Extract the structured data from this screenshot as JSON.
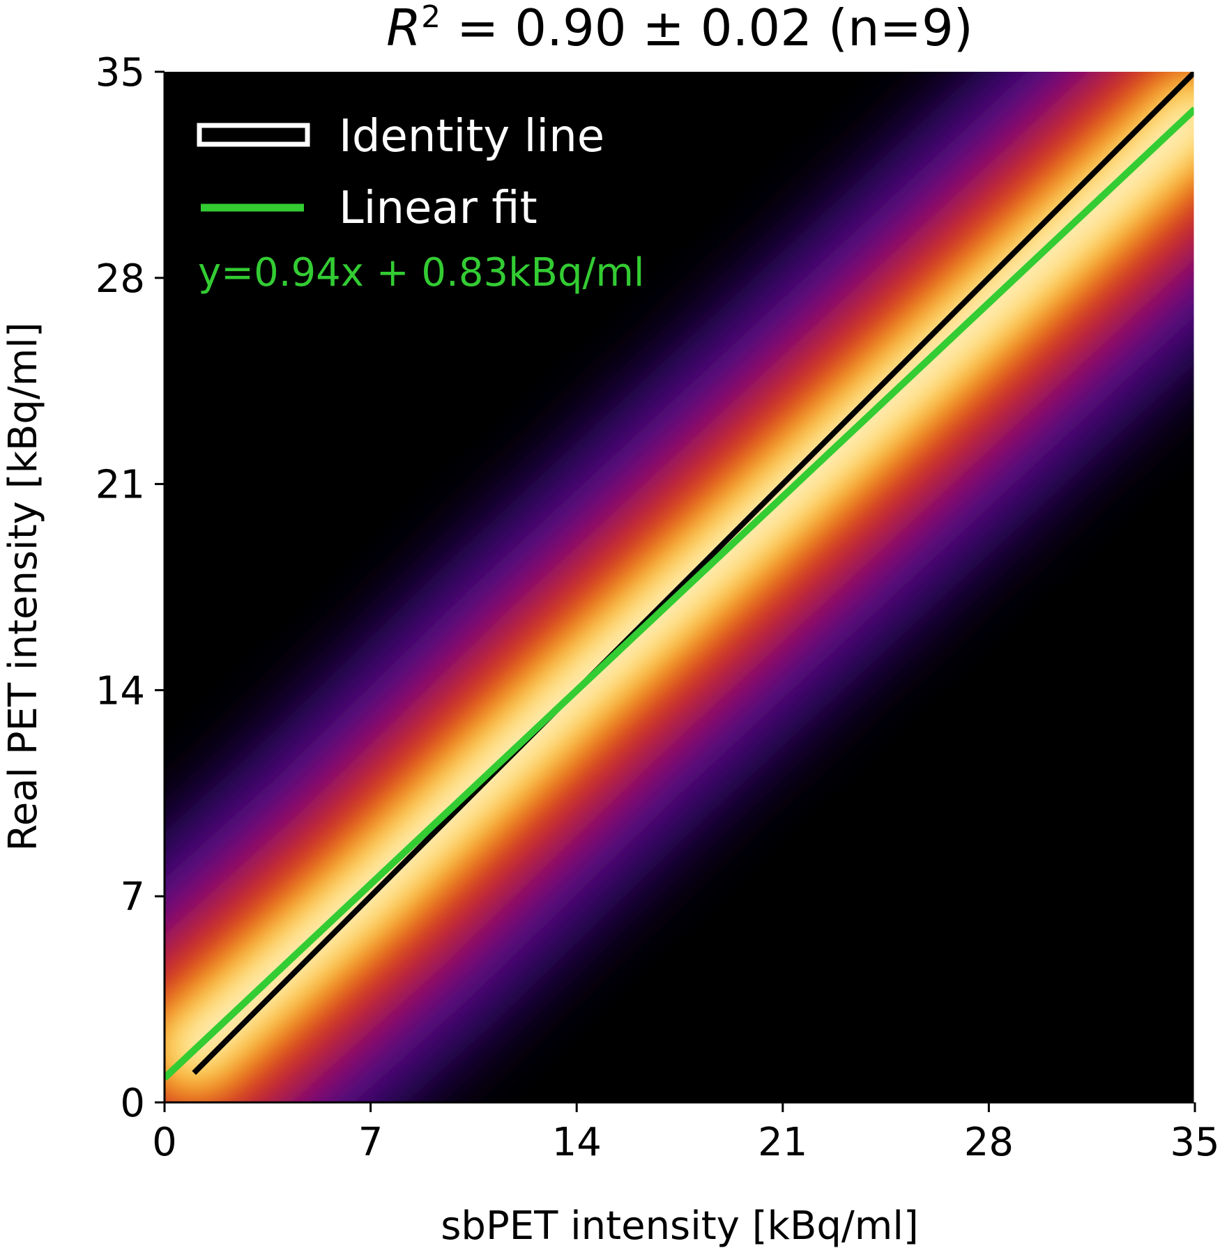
{
  "chart_data": {
    "type": "heatmap",
    "title": {
      "r_symbol": "R",
      "r_exponent": "2",
      "rest": " = 0.90 ± 0.02 (n=9)"
    },
    "xlabel": "sbPET intensity [kBq/ml]",
    "ylabel": "Real PET intensity [kBq/ml]",
    "xlim": [
      0,
      35
    ],
    "ylim": [
      0,
      35
    ],
    "xticks": [
      0,
      7,
      14,
      21,
      28,
      35
    ],
    "yticks": [
      0,
      7,
      14,
      21,
      28,
      35
    ],
    "colormap": "hot",
    "background_color": "#000000",
    "density_ridge": [
      {
        "x": 1,
        "y": 1.8
      },
      {
        "x": 7,
        "y": 7.2
      },
      {
        "x": 14,
        "y": 14.0
      },
      {
        "x": 21,
        "y": 20.5
      },
      {
        "x": 28,
        "y": 27.0
      },
      {
        "x": 35,
        "y": 33.5
      }
    ],
    "series": [
      {
        "name": "Identity line",
        "kind": "identity",
        "slope": 1,
        "intercept": 0,
        "x_range": [
          1,
          35
        ],
        "color": "#000000",
        "legend_color": "#ffffff"
      },
      {
        "name": "Linear fit",
        "kind": "fit",
        "slope": 0.94,
        "intercept": 0.83,
        "x_range": [
          0,
          35
        ],
        "color": "#33cc33"
      }
    ],
    "annotations": [
      {
        "text": "y=0.94x + 0.83kBq/ml",
        "color": "#33cc33"
      }
    ],
    "legend_placement": "top-left",
    "grid": false
  }
}
